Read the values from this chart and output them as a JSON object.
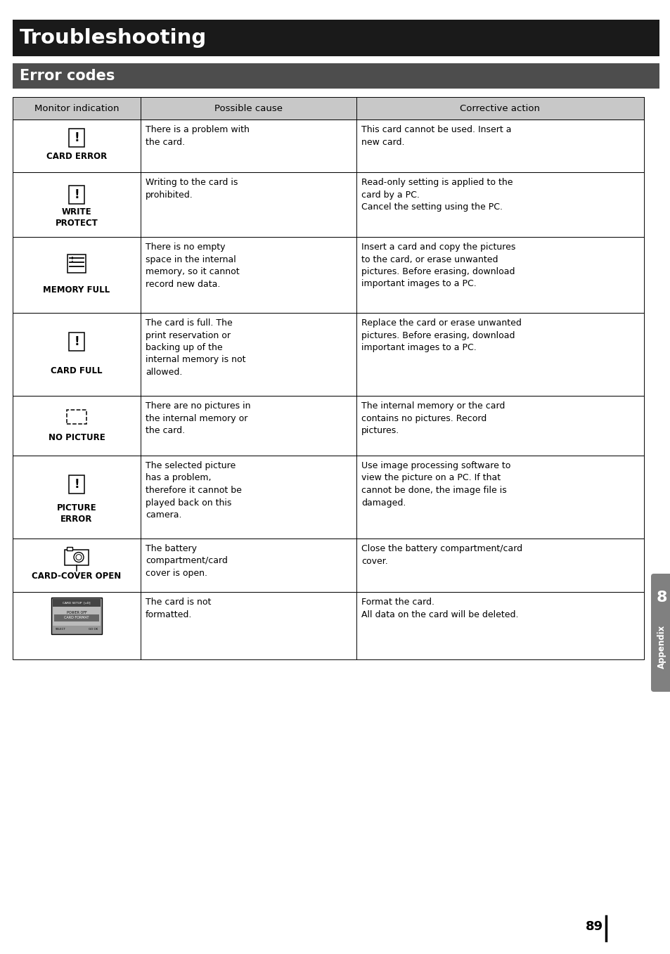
{
  "page_title": "Troubleshooting",
  "section_title": "Error codes",
  "title_bg": "#1a1a1a",
  "section_bg": "#4d4d4d",
  "header_bg": "#c8c8c8",
  "white": "#ffffff",
  "black": "#000000",
  "page_bg": "#ffffff",
  "page_number": "89",
  "appendix_number": "8",
  "appendix_text": "Appendix",
  "col_headers": [
    "Monitor indication",
    "Possible cause",
    "Corrective action"
  ],
  "rows": [
    {
      "icon_label": "CARD ERROR",
      "icon_type": "exclamation_card",
      "possible_cause": "There is a problem with\nthe card.",
      "corrective_action": "This card cannot be used. Insert a\nnew card."
    },
    {
      "icon_label": "WRITE\nPROTECT",
      "icon_type": "exclamation_card",
      "possible_cause": "Writing to the card is\nprohibited.",
      "corrective_action": "Read-only setting is applied to the\ncard by a PC.\nCancel the setting using the PC."
    },
    {
      "icon_label": "MEMORY FULL",
      "icon_type": "memory_full",
      "possible_cause": "There is no empty\nspace in the internal\nmemory, so it cannot\nrecord new data.",
      "corrective_action": "Insert a card and copy the pictures\nto the card, or erase unwanted\npictures. Before erasing, download\nimportant images to a PC."
    },
    {
      "icon_label": "CARD FULL",
      "icon_type": "exclamation_card",
      "possible_cause": "The card is full. The\nprint reservation or\nbacking up of the\ninternal memory is not\nallowed.",
      "corrective_action": "Replace the card or erase unwanted\npictures. Before erasing, download\nimportant images to a PC."
    },
    {
      "icon_label": "NO PICTURE",
      "icon_type": "dashed_rect",
      "possible_cause": "There are no pictures in\nthe internal memory or\nthe card.",
      "corrective_action": "The internal memory or the card\ncontains no pictures. Record\npictures."
    },
    {
      "icon_label": "PICTURE\nERROR",
      "icon_type": "exclamation_card",
      "possible_cause": "The selected picture\nhas a problem,\ntherefore it cannot be\nplayed back on this\ncamera.",
      "corrective_action": "Use image processing software to\nview the picture on a PC. If that\ncannot be done, the image file is\ndamaged."
    },
    {
      "icon_label": "CARD-COVER OPEN",
      "icon_type": "camera_icon",
      "possible_cause": "The battery\ncompartment/card\ncover is open.",
      "corrective_action": "Close the battery compartment/card\ncover."
    },
    {
      "icon_label": "",
      "icon_type": "screen_menu",
      "possible_cause": "The card is not\nformatted.",
      "corrective_action": "Format the card.\nAll data on the card will be deleted."
    }
  ]
}
